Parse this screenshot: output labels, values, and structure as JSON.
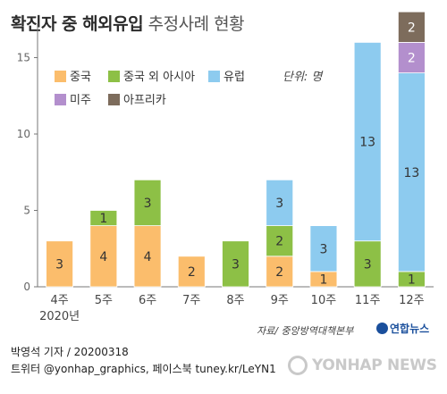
{
  "header": {
    "title_bold": "확진자 중 해외유입",
    "title_light": "추정사례 현황"
  },
  "legend": {
    "items": [
      {
        "label": "중국",
        "color": "#fbbd6c"
      },
      {
        "label": "중국 외 아시아",
        "color": "#8dc046"
      },
      {
        "label": "유럽",
        "color": "#8dcbef"
      },
      {
        "label": "미주",
        "color": "#b38fcd"
      },
      {
        "label": "아프리카",
        "color": "#7d6c5c"
      }
    ],
    "unit": "단위: 명"
  },
  "chart_data": {
    "type": "bar",
    "stacked": true,
    "categories": [
      "4주",
      "5주",
      "6주",
      "7주",
      "8주",
      "9주",
      "10주",
      "11주",
      "12주"
    ],
    "year_label": "2020년",
    "ylim": [
      0,
      17
    ],
    "yticks": [
      0,
      5,
      10,
      15
    ],
    "grid": false,
    "legend_position": "top-left",
    "series": [
      {
        "name": "중국",
        "color": "#fbbd6c",
        "values": [
          3,
          4,
          4,
          2,
          0,
          2,
          1,
          0,
          0
        ]
      },
      {
        "name": "중국 외 아시아",
        "color": "#8dc046",
        "values": [
          0,
          1,
          3,
          0,
          3,
          2,
          0,
          3,
          1
        ]
      },
      {
        "name": "유럽",
        "color": "#8dcbef",
        "values": [
          0,
          0,
          0,
          0,
          0,
          3,
          3,
          13,
          13
        ]
      },
      {
        "name": "미주",
        "color": "#b38fcd",
        "values": [
          0,
          0,
          0,
          0,
          0,
          0,
          0,
          0,
          2
        ]
      },
      {
        "name": "아프리카",
        "color": "#7d6c5c",
        "values": [
          0,
          0,
          0,
          0,
          0,
          0,
          0,
          0,
          2
        ]
      }
    ]
  },
  "footer": {
    "source": "자료/ 중앙방역대책본부",
    "brand": "연합뉴스",
    "byline": "박영석 기자 / 20200318",
    "social": "트위터 @yonhap_graphics, 페이스북 tuney.kr/LeYN1",
    "watermark": "YONHAP NEWS"
  }
}
